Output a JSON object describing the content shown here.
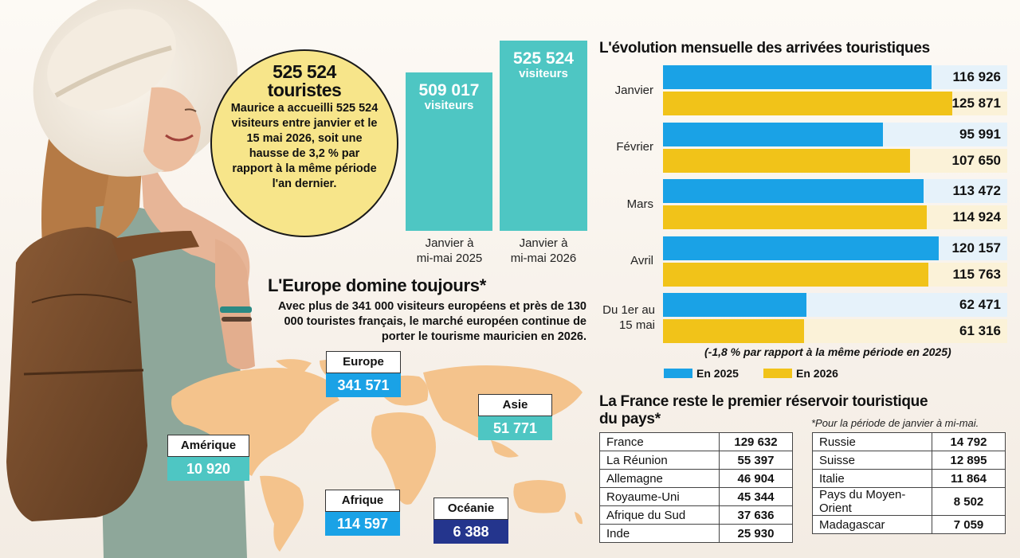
{
  "headline": {
    "number": "525 524",
    "unit": "touristes",
    "text": "Maurice a accueilli 525 524 visiteurs entre janvier et le 15 mai 2026, soit une hausse de 3,2 % par rapport à la même période l'an dernier."
  },
  "comparison": {
    "bars": [
      {
        "value_label": "509 017",
        "unit": "visiteurs",
        "value": 509017,
        "period_line1": "Janvier à",
        "period_line2": "mi-mai 2025"
      },
      {
        "value_label": "525 524",
        "unit": "visiteurs",
        "value": 525524,
        "period_line1": "Janvier à",
        "period_line2": "mi-mai 2026"
      }
    ]
  },
  "europe": {
    "title": "L'Europe domine toujours*",
    "text": "Avec plus de 341 000 visiteurs européens et près de 130 000 touristes français, le marché européen continue de porter le tourisme mauricien en 2026."
  },
  "regions": [
    {
      "name": "Europe",
      "value": "341 571",
      "color": "#1aa2e6"
    },
    {
      "name": "Asie",
      "value": "51 771",
      "color": "#4ec6c3"
    },
    {
      "name": "Amérique",
      "value": "10 920",
      "color": "#4ec6c3"
    },
    {
      "name": "Afrique",
      "value": "114 597",
      "color": "#1aa2e6"
    },
    {
      "name": "Océanie",
      "value": "6 388",
      "color": "#24358d"
    }
  ],
  "monthly": {
    "title": "L'évolution mensuelle des arrivées touristiques",
    "note": "(-1,8 % par rapport à la même période en 2025)",
    "legend_2025": "En 2025",
    "legend_2026": "En 2026",
    "color_2025": "#1aa2e6",
    "color_2026": "#f1c319",
    "months": [
      "Janvier",
      "Février",
      "Mars",
      "Avril",
      "Du 1er au 15 mai"
    ]
  },
  "chart_data": {
    "type": "bar",
    "orientation": "horizontal",
    "categories": [
      "Janvier",
      "Février",
      "Mars",
      "Avril",
      "Du 1er au 15 mai"
    ],
    "series": [
      {
        "name": "En 2025",
        "values": [
          116926,
          95991,
          113472,
          120157,
          62471
        ],
        "labels": [
          "116 926",
          "95 991",
          "113 472",
          "120 157",
          "62 471"
        ]
      },
      {
        "name": "En 2026",
        "values": [
          125871,
          107650,
          114924,
          115763,
          61316
        ],
        "labels": [
          "125 871",
          "107 650",
          "114 924",
          "115 763",
          "61 316"
        ]
      }
    ],
    "title": "L'évolution mensuelle des arrivées touristiques",
    "xlim": [
      0,
      150000
    ]
  },
  "france": {
    "title_line1": "La France reste le premier réservoir touristique",
    "title_line2": "du pays*",
    "footnote": "*Pour la période de janvier à mi-mai.",
    "left": [
      {
        "country": "France",
        "value": "129 632"
      },
      {
        "country": "La Réunion",
        "value": "55 397"
      },
      {
        "country": "Allemagne",
        "value": "46 904"
      },
      {
        "country": "Royaume-Uni",
        "value": "45 344"
      },
      {
        "country": "Afrique du Sud",
        "value": "37 636"
      },
      {
        "country": "Inde",
        "value": "25 930"
      }
    ],
    "right": [
      {
        "country": "Russie",
        "value": "14 792"
      },
      {
        "country": "Suisse",
        "value": "12 895"
      },
      {
        "country": "Italie",
        "value": "11 864"
      },
      {
        "country": "Pays du Moyen-Orient",
        "value": "8 502"
      },
      {
        "country": "Madagascar",
        "value": "7 059"
      }
    ]
  }
}
